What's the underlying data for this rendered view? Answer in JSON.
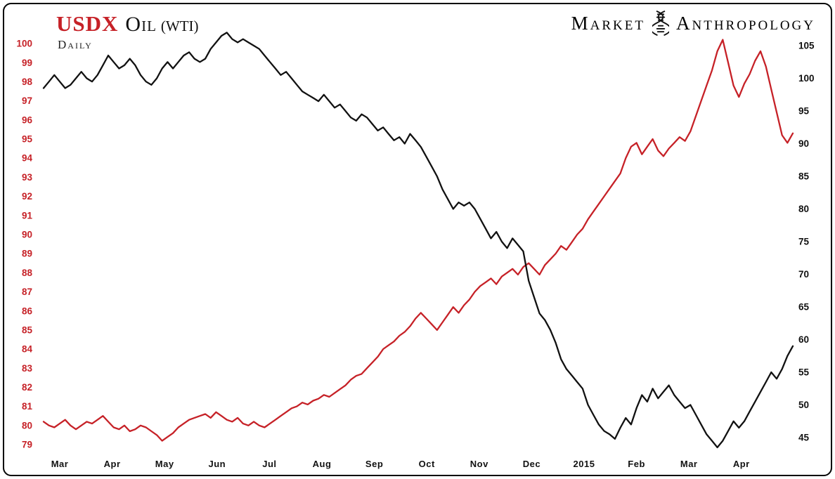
{
  "header": {
    "title_usdx": "USDX",
    "title_oil": "Oil",
    "title_wti": "(WTI)",
    "subtitle": "Daily",
    "brand_left": "Market",
    "brand_right": "Anthropology"
  },
  "chart_data": {
    "type": "line",
    "title": "USDX Oil (WTI)",
    "subtitle": "Daily",
    "grid": false,
    "legend": "none (series identified by title colors)",
    "x_labels": [
      "Mar",
      "Apr",
      "May",
      "Jun",
      "Jul",
      "Aug",
      "Sep",
      "Oct",
      "Nov",
      "Dec",
      "2015",
      "Feb",
      "Mar",
      "Apr"
    ],
    "axes": {
      "left": {
        "label": "USDX",
        "min": 79,
        "max": 100,
        "color": "#c62127",
        "ticks": [
          100,
          99,
          98,
          97,
          96,
          95,
          94,
          93,
          92,
          91,
          90,
          89,
          88,
          87,
          86,
          85,
          84,
          83,
          82,
          81,
          80,
          79
        ]
      },
      "right": {
        "label": "Oil (WTI)",
        "min": 45,
        "max": 105,
        "color": "#111111",
        "ticks": [
          105,
          100,
          95,
          90,
          85,
          80,
          75,
          70,
          65,
          60,
          55,
          50,
          45
        ]
      }
    },
    "series": [
      {
        "name": "USDX",
        "axis": "left",
        "color": "#c62127",
        "values": [
          80.2,
          80.0,
          79.9,
          80.1,
          80.3,
          80.0,
          79.8,
          80.0,
          80.2,
          80.1,
          80.3,
          80.5,
          80.2,
          79.9,
          79.8,
          80.0,
          79.7,
          79.8,
          80.0,
          79.9,
          79.7,
          79.5,
          79.2,
          79.4,
          79.6,
          79.9,
          80.1,
          80.3,
          80.4,
          80.5,
          80.6,
          80.4,
          80.7,
          80.5,
          80.3,
          80.2,
          80.4,
          80.1,
          80.0,
          80.2,
          80.0,
          79.9,
          80.1,
          80.3,
          80.5,
          80.7,
          80.9,
          81.0,
          81.2,
          81.1,
          81.3,
          81.4,
          81.6,
          81.5,
          81.7,
          81.9,
          82.1,
          82.4,
          82.6,
          82.7,
          83.0,
          83.3,
          83.6,
          84.0,
          84.2,
          84.4,
          84.7,
          84.9,
          85.2,
          85.6,
          85.9,
          85.6,
          85.3,
          85.0,
          85.4,
          85.8,
          86.2,
          85.9,
          86.3,
          86.6,
          87.0,
          87.3,
          87.5,
          87.7,
          87.4,
          87.8,
          88.0,
          88.2,
          87.9,
          88.3,
          88.5,
          88.2,
          87.9,
          88.4,
          88.7,
          89.0,
          89.4,
          89.2,
          89.6,
          90.0,
          90.3,
          90.8,
          91.2,
          91.6,
          92.0,
          92.4,
          92.8,
          93.2,
          94.0,
          94.6,
          94.8,
          94.2,
          94.6,
          95.0,
          94.4,
          94.1,
          94.5,
          94.8,
          95.1,
          94.9,
          95.4,
          96.2,
          97.0,
          97.8,
          98.6,
          99.6,
          100.2,
          99.0,
          97.8,
          97.2,
          97.9,
          98.4,
          99.1,
          99.6,
          98.8,
          97.6,
          96.4,
          95.2,
          94.8,
          95.3
        ]
      },
      {
        "name": "Oil (WTI)",
        "axis": "right",
        "color": "#111111",
        "values": [
          98.5,
          99.5,
          100.5,
          99.5,
          98.5,
          99.0,
          100.0,
          101.0,
          100.0,
          99.5,
          100.5,
          102.0,
          103.5,
          102.5,
          101.5,
          102.0,
          103.0,
          102.0,
          100.5,
          99.5,
          99.0,
          100.0,
          101.5,
          102.5,
          101.5,
          102.5,
          103.5,
          104.0,
          103.0,
          102.5,
          103.0,
          104.5,
          105.5,
          106.5,
          107.0,
          106.0,
          105.5,
          106.0,
          105.5,
          105.0,
          104.5,
          103.5,
          102.5,
          101.5,
          100.5,
          101.0,
          100.0,
          99.0,
          98.0,
          97.5,
          97.0,
          96.5,
          97.5,
          96.5,
          95.5,
          96.0,
          95.0,
          94.0,
          93.5,
          94.5,
          94.0,
          93.0,
          92.0,
          92.5,
          91.5,
          90.5,
          91.0,
          90.0,
          91.5,
          90.5,
          89.5,
          88.0,
          86.5,
          85.0,
          83.0,
          81.5,
          80.0,
          81.0,
          80.5,
          81.0,
          80.0,
          78.5,
          77.0,
          75.5,
          76.5,
          75.0,
          74.0,
          75.5,
          74.5,
          73.5,
          69.0,
          66.5,
          64.0,
          63.0,
          61.5,
          59.5,
          57.0,
          55.5,
          54.5,
          53.5,
          52.5,
          50.0,
          48.5,
          47.0,
          46.0,
          45.5,
          44.8,
          46.5,
          48.0,
          47.0,
          49.5,
          51.5,
          50.5,
          52.5,
          51.0,
          52.0,
          53.0,
          51.5,
          50.5,
          49.5,
          50.0,
          48.5,
          47.0,
          45.5,
          44.5,
          43.5,
          44.5,
          46.0,
          47.5,
          46.5,
          47.5,
          49.0,
          50.5,
          52.0,
          53.5,
          55.0,
          54.0,
          55.5,
          57.5,
          59.0
        ]
      }
    ]
  }
}
